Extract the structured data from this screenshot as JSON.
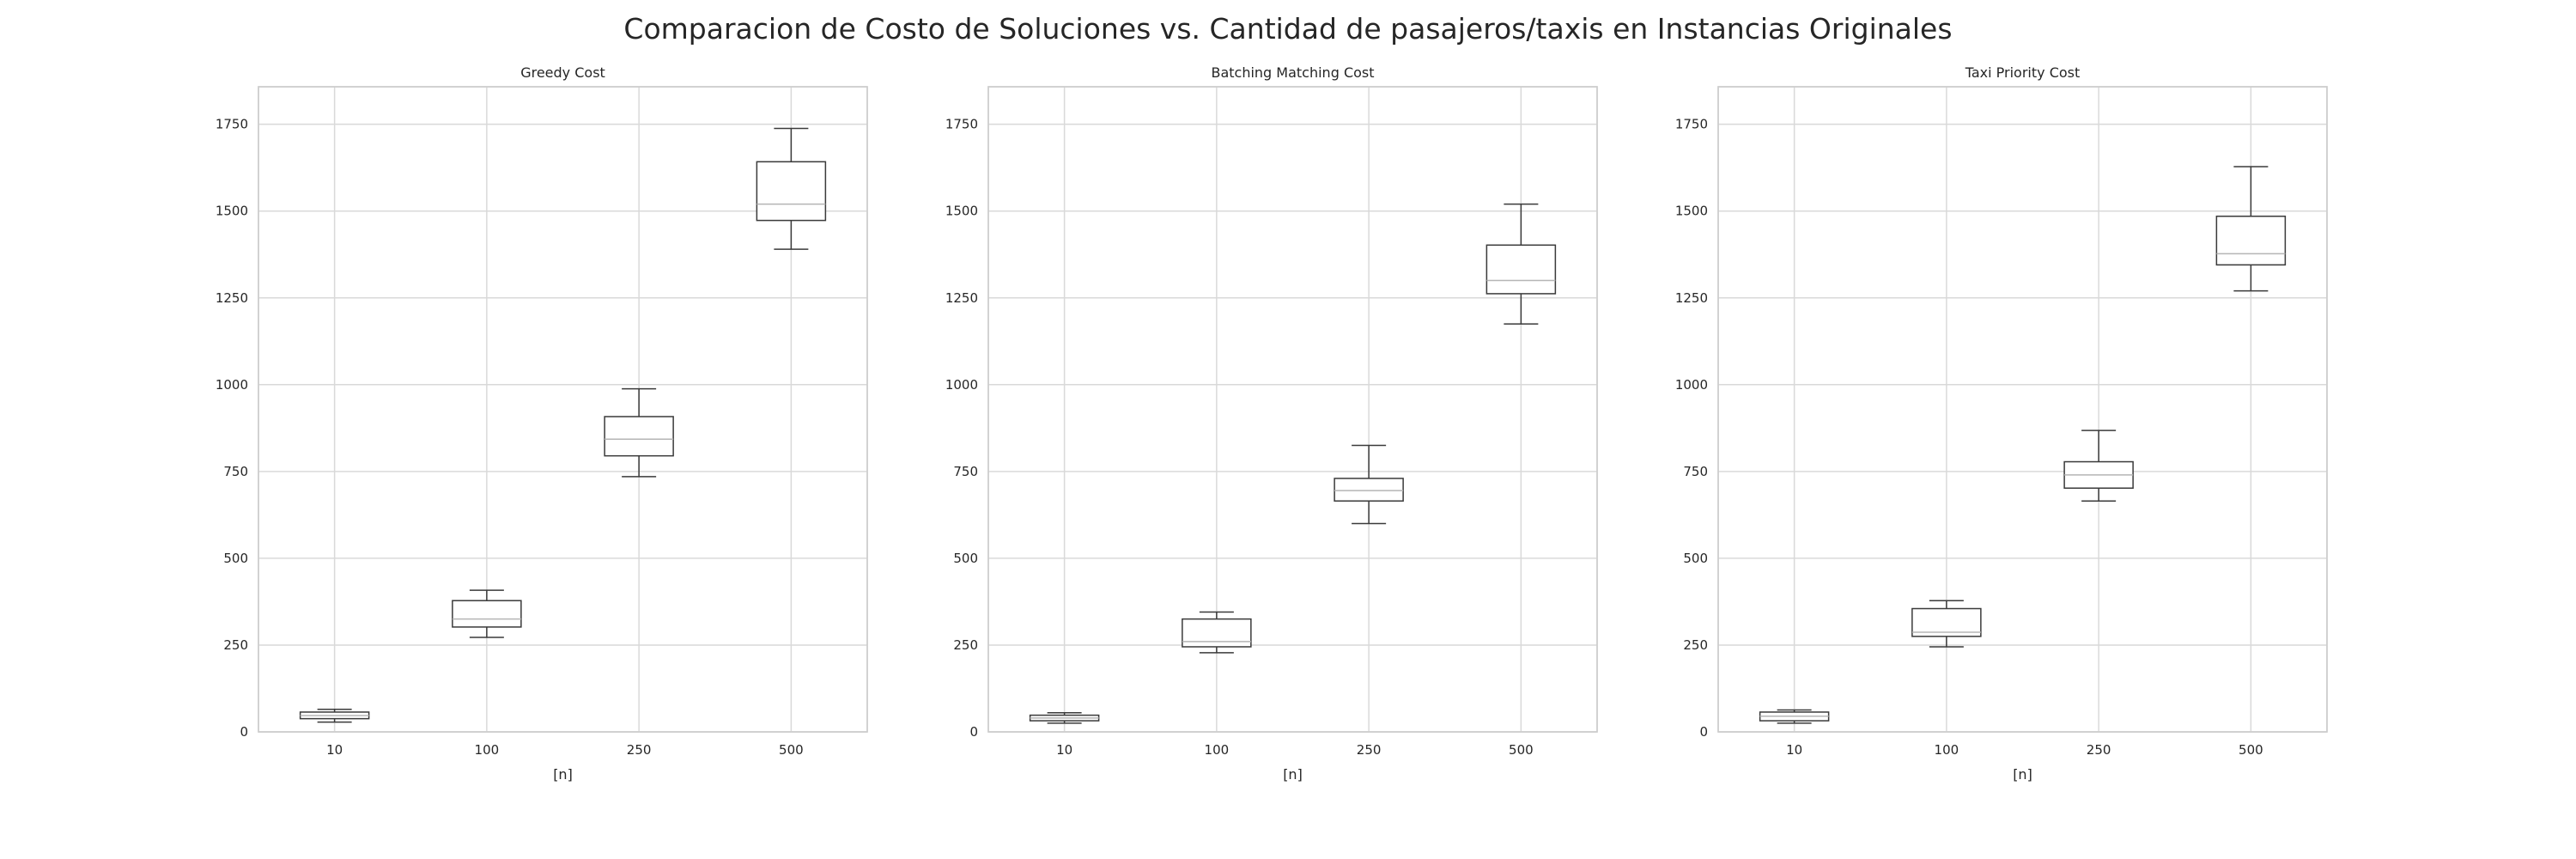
{
  "figure": {
    "title": "Comparacion de Costo de Soluciones vs. Cantidad de pasajeros/taxis en Instancias Originales"
  },
  "colors": {
    "grid": "#d9d9d9",
    "frame": "#cccccc",
    "box": "#3a3a3a",
    "median": "#b5b5b5",
    "text": "#262626"
  },
  "chart_data": [
    {
      "type": "box",
      "title": "Greedy Cost",
      "xlabel": "[n]",
      "ylabel": "",
      "categories": [
        "10",
        "100",
        "250",
        "500"
      ],
      "ylim": [
        0,
        1750
      ],
      "yticks": [
        "0",
        "250",
        "500",
        "750",
        "1000",
        "1250",
        "1500",
        "1750"
      ],
      "grid": true,
      "boxes": [
        {
          "category": "10",
          "whisker_low": 28,
          "q1": 38,
          "median": 47,
          "q3": 57,
          "whisker_high": 65
        },
        {
          "category": "100",
          "whisker_low": 272,
          "q1": 302,
          "median": 325,
          "q3": 378,
          "whisker_high": 408
        },
        {
          "category": "250",
          "whisker_low": 735,
          "q1": 795,
          "median": 843,
          "q3": 908,
          "whisker_high": 988
        },
        {
          "category": "500",
          "whisker_low": 1390,
          "q1": 1473,
          "median": 1520,
          "q3": 1642,
          "whisker_high": 1738
        }
      ]
    },
    {
      "type": "box",
      "title": "Batching Matching Cost",
      "xlabel": "[n]",
      "ylabel": "",
      "categories": [
        "10",
        "100",
        "250",
        "500"
      ],
      "ylim": [
        0,
        1750
      ],
      "yticks": [
        "0",
        "250",
        "500",
        "750",
        "1000",
        "1250",
        "1500",
        "1750"
      ],
      "grid": true,
      "boxes": [
        {
          "category": "10",
          "whisker_low": 25,
          "q1": 32,
          "median": 40,
          "q3": 48,
          "whisker_high": 55
        },
        {
          "category": "100",
          "whisker_low": 228,
          "q1": 245,
          "median": 260,
          "q3": 325,
          "whisker_high": 345
        },
        {
          "category": "250",
          "whisker_low": 600,
          "q1": 665,
          "median": 695,
          "q3": 730,
          "whisker_high": 825
        },
        {
          "category": "500",
          "whisker_low": 1175,
          "q1": 1262,
          "median": 1300,
          "q3": 1402,
          "whisker_high": 1520
        }
      ]
    },
    {
      "type": "box",
      "title": "Taxi Priority Cost",
      "xlabel": "[n]",
      "ylabel": "",
      "categories": [
        "10",
        "100",
        "250",
        "500"
      ],
      "ylim": [
        0,
        1750
      ],
      "yticks": [
        "0",
        "250",
        "500",
        "750",
        "1000",
        "1250",
        "1500",
        "1750"
      ],
      "grid": true,
      "boxes": [
        {
          "category": "10",
          "whisker_low": 25,
          "q1": 32,
          "median": 45,
          "q3": 57,
          "whisker_high": 63
        },
        {
          "category": "100",
          "whisker_low": 245,
          "q1": 275,
          "median": 287,
          "q3": 355,
          "whisker_high": 378
        },
        {
          "category": "250",
          "whisker_low": 665,
          "q1": 702,
          "median": 740,
          "q3": 778,
          "whisker_high": 868
        },
        {
          "category": "500",
          "whisker_low": 1270,
          "q1": 1345,
          "median": 1377,
          "q3": 1485,
          "whisker_high": 1628
        }
      ]
    }
  ]
}
